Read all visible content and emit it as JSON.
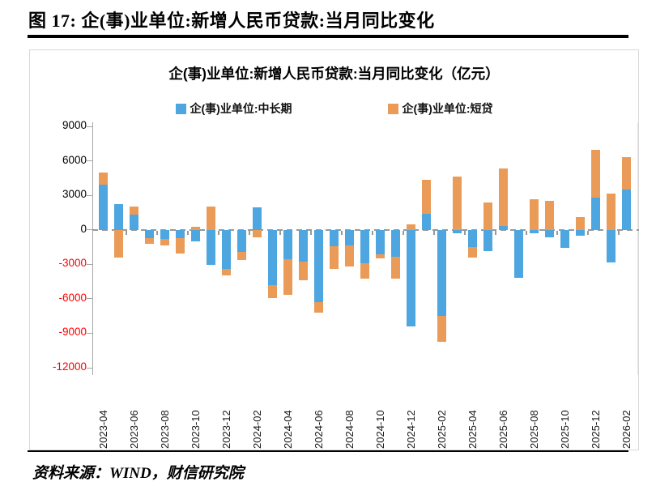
{
  "page": {
    "figure_title": "图 17:  企(事)业单位:新增人民币贷款:当月同比变化",
    "source_text": "资料来源：WIND，财信研究院"
  },
  "chart_data": {
    "type": "bar",
    "stacked": true,
    "title": "企(事)业单位:新增人民币贷款:当月同比变化（亿元）",
    "unit": "亿元",
    "legend_position": "top",
    "grid": false,
    "ylim": [
      -12000,
      9000
    ],
    "y_ticks": [
      9000,
      6000,
      3000,
      0,
      -3000,
      -6000,
      -9000,
      -12000
    ],
    "negative_tick_color": "#ff0000",
    "categories": [
      "2023-04",
      "2023-05",
      "2023-06",
      "2023-07",
      "2023-08",
      "2023-09",
      "2023-10",
      "2023-11",
      "2023-12",
      "2024-01",
      "2024-02",
      "2024-03",
      "2024-04",
      "2024-05",
      "2024-06",
      "2024-07",
      "2024-08",
      "2024-09",
      "2024-10",
      "2024-11",
      "2024-12",
      "2025-01",
      "2025-02",
      "2025-03",
      "2025-04",
      "2025-05",
      "2025-06",
      "2025-07",
      "2025-08",
      "2025-09",
      "2025-10",
      "2025-11",
      "2025-12",
      "2026-01",
      "2026-02"
    ],
    "x_tick_labels": [
      "2023-04",
      "2023-06",
      "2023-08",
      "2023-10",
      "2023-12",
      "2024-02",
      "2024-04",
      "2024-06",
      "2024-08",
      "2024-10",
      "2024-12",
      "2025-02",
      "2025-04",
      "2025-06",
      "2025-08",
      "2025-10",
      "2025-12",
      "2026-02"
    ],
    "series": [
      {
        "name": "企(事)业单位:中长期",
        "color": "#4da6df",
        "values": [
          3900,
          2250,
          1350,
          -750,
          -820,
          -750,
          -1000,
          -3050,
          -3400,
          -1920,
          1950,
          -4800,
          -2580,
          -2750,
          -6270,
          -1400,
          -1340,
          -2900,
          -2100,
          -2330,
          -8400,
          1370,
          -7500,
          -280,
          -1520,
          -1880,
          300,
          -4150,
          -320,
          -630,
          -1570,
          -510,
          2820,
          -2860,
          3520
        ]
      },
      {
        "name": "企(事)业单位:短贷",
        "color": "#eb9b58",
        "values": [
          1050,
          -2400,
          700,
          -470,
          -520,
          -1290,
          280,
          2000,
          -600,
          -710,
          -630,
          -1130,
          -3100,
          -1650,
          -940,
          -2000,
          -1870,
          -1360,
          -380,
          -1950,
          480,
          3000,
          -2250,
          4650,
          -870,
          2350,
          5050,
          0,
          2650,
          2540,
          0,
          1130,
          4140,
          3170,
          2820
        ]
      }
    ]
  }
}
